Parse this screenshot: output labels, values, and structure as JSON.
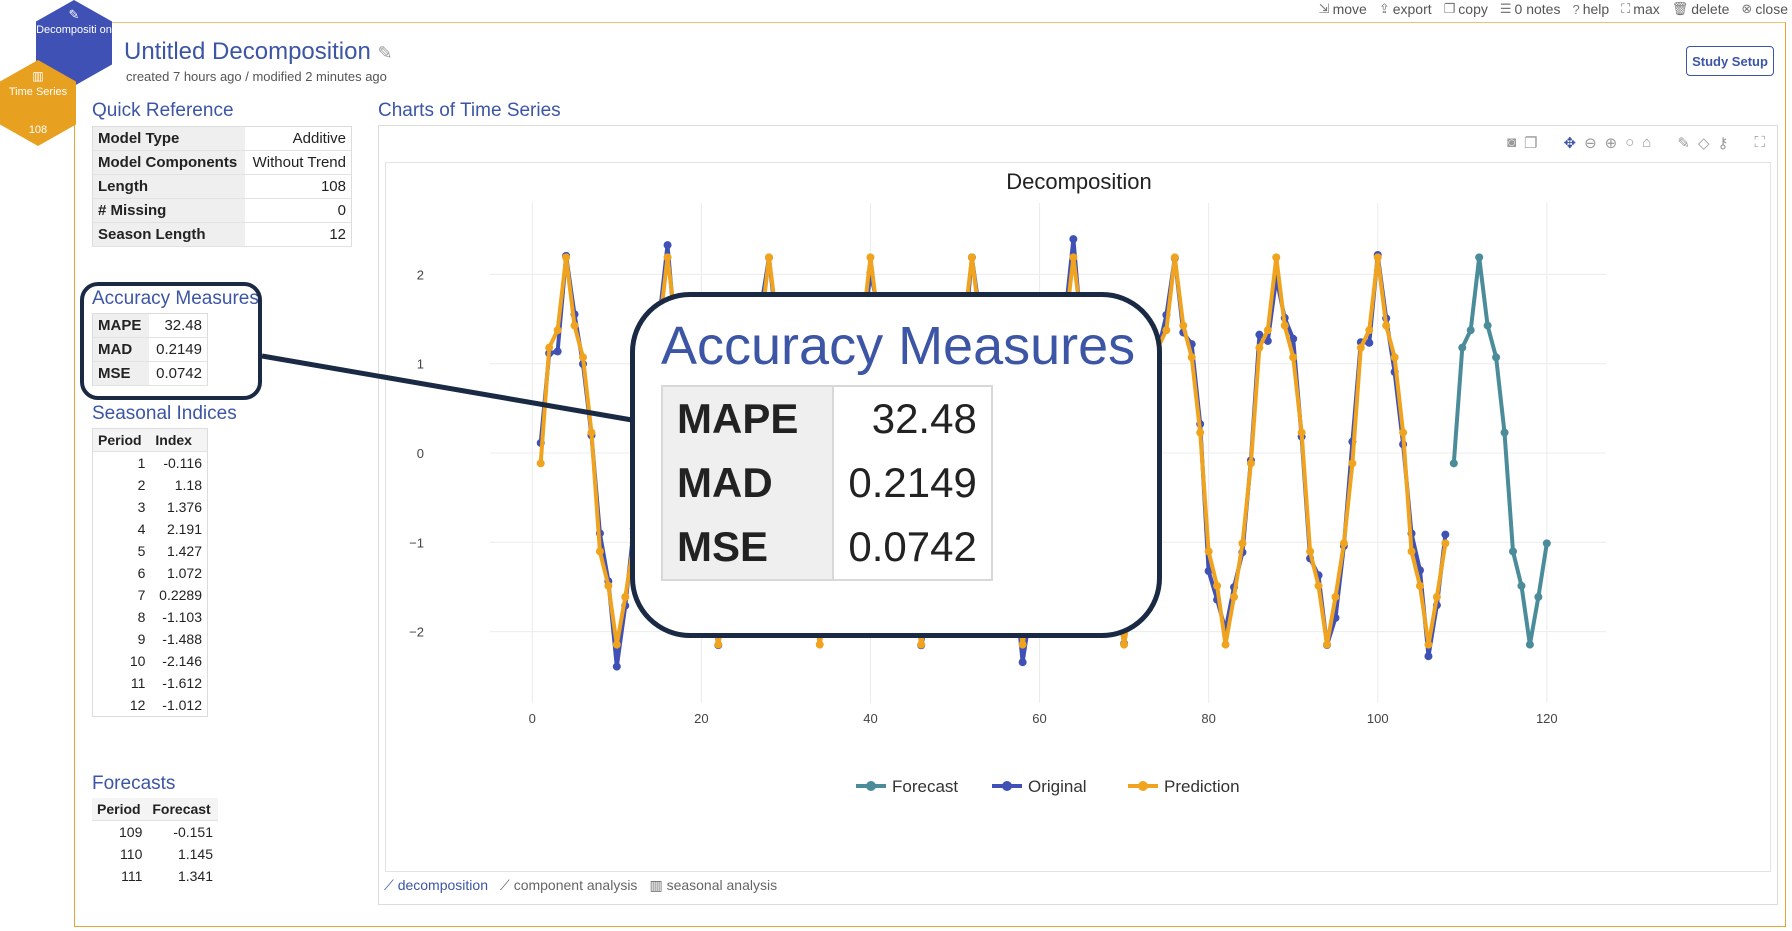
{
  "nav": {
    "hex1_label": "Decompositi on",
    "hex2_label": "Time Series",
    "hex2_count": "108"
  },
  "top_actions": [
    {
      "icon": "move-icon",
      "label": "move"
    },
    {
      "icon": "export-icon",
      "label": "export"
    },
    {
      "icon": "copy-icon",
      "label": "copy"
    },
    {
      "icon": "notes-icon",
      "label": "0 notes"
    },
    {
      "icon": "help-icon",
      "label": "help"
    },
    {
      "icon": "max-icon",
      "label": "max"
    },
    {
      "icon": "delete-icon",
      "label": "delete"
    },
    {
      "icon": "close-icon",
      "label": "close"
    }
  ],
  "header": {
    "title": "Untitled Decomposition",
    "subtitle": "created 7 hours ago / modified 2 minutes ago",
    "study_setup": "Study Setup"
  },
  "quick_reference": {
    "title": "Quick Reference",
    "rows": [
      {
        "k": "Model Type",
        "v": "Additive"
      },
      {
        "k": "Model Components",
        "v": "Without Trend"
      },
      {
        "k": "Length",
        "v": "108"
      },
      {
        "k": "# Missing",
        "v": "0"
      },
      {
        "k": "Season Length",
        "v": "12"
      }
    ]
  },
  "accuracy": {
    "title": "Accuracy Measures",
    "rows": [
      {
        "k": "MAPE",
        "v": "32.48"
      },
      {
        "k": "MAD",
        "v": "0.2149"
      },
      {
        "k": "MSE",
        "v": "0.0742"
      }
    ]
  },
  "seasonal": {
    "title": "Seasonal Indices",
    "headers": [
      "Period",
      "Index"
    ],
    "rows": [
      [
        "1",
        "-0.116"
      ],
      [
        "2",
        "1.18"
      ],
      [
        "3",
        "1.376"
      ],
      [
        "4",
        "2.191"
      ],
      [
        "5",
        "1.427"
      ],
      [
        "6",
        "1.072"
      ],
      [
        "7",
        "0.2289"
      ],
      [
        "8",
        "-1.103"
      ],
      [
        "9",
        "-1.488"
      ],
      [
        "10",
        "-2.146"
      ],
      [
        "11",
        "-1.612"
      ],
      [
        "12",
        "-1.012"
      ]
    ]
  },
  "forecasts": {
    "title": "Forecasts",
    "headers": [
      "Period",
      "Forecast"
    ],
    "rows": [
      [
        "109",
        "-0.151"
      ],
      [
        "110",
        "1.145"
      ],
      [
        "111",
        "1.341"
      ]
    ]
  },
  "charts_section": {
    "title": "Charts of Time Series",
    "tabs": [
      "decomposition",
      "component analysis",
      "seasonal analysis"
    ]
  },
  "colors": {
    "forecast": "#4a8c9a",
    "original": "#3f51b5",
    "prediction": "#f0a31e"
  },
  "chart_data": {
    "type": "line",
    "title": "Decomposition",
    "xlim": [
      -5,
      127
    ],
    "ylim": [
      -2.8,
      2.8
    ],
    "xticks": [
      0,
      20,
      40,
      60,
      80,
      100,
      120
    ],
    "yticks": [
      -2,
      -1,
      0,
      1,
      2
    ],
    "grid": true,
    "legend_position": "bottom",
    "seasonal_pattern": [
      -0.116,
      1.18,
      1.376,
      2.191,
      1.427,
      1.072,
      0.2289,
      -1.103,
      -1.488,
      -2.146,
      -1.612,
      -1.012
    ],
    "series": [
      {
        "name": "Forecast",
        "x_start": 109,
        "x_end": 120
      },
      {
        "name": "Original",
        "x_start": 1,
        "x_end": 108
      },
      {
        "name": "Prediction",
        "x_start": 1,
        "x_end": 108
      }
    ]
  }
}
